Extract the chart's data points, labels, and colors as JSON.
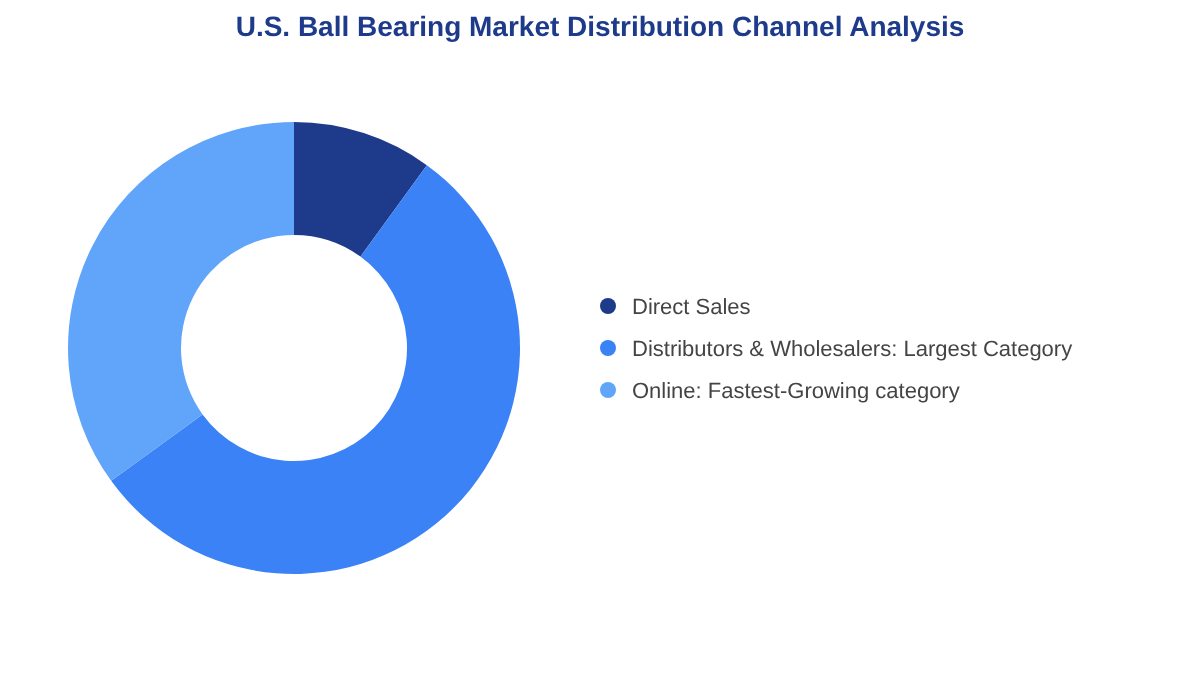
{
  "chart_data": {
    "type": "donut",
    "title": "U.S. Ball Bearing Market Distribution Channel Analysis",
    "categories": [
      "Direct Sales",
      "Distributors & Wholesalers:  Largest Category",
      "Online:  Fastest-Growing category"
    ],
    "values": [
      10,
      55,
      35
    ],
    "colors": [
      "#1e3a8a",
      "#3b82f6",
      "#60a5fa"
    ],
    "legend": "right"
  }
}
